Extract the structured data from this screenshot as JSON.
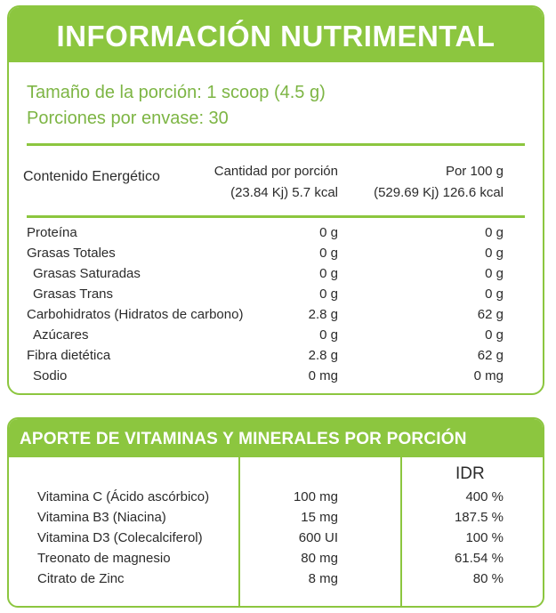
{
  "nutrition": {
    "title": "INFORMACIÓN  NUTRIMENTAL",
    "serving_size": "Tamaño de la porción: 1 scoop (4.5 g)",
    "servings_per_container": "Porciones por envase: 30",
    "energy_label": "Contenido Energético",
    "per_serving_header": "Cantidad por porción",
    "per_serving_energy": "(23.84 Kj) 5.7 kcal",
    "per_100g_header": "Por 100 g",
    "per_100g_energy": "(529.69 Kj) 126.6 kcal",
    "rows": [
      {
        "label": "Proteína",
        "per_serving": "0 g",
        "per_100g": "0 g"
      },
      {
        "label": "Grasas Totales",
        "per_serving": "0 g",
        "per_100g": "0 g"
      },
      {
        "label": "Grasas Saturadas",
        "per_serving": "0 g",
        "per_100g": "0 g"
      },
      {
        "label": "Grasas Trans",
        "per_serving": "0 g",
        "per_100g": "0 g"
      },
      {
        "label": "Carbohidratos (Hidratos de carbono)",
        "per_serving": "2.8 g",
        "per_100g": "62 g"
      },
      {
        "label": "Azúcares",
        "per_serving": "0 g",
        "per_100g": "0 g"
      },
      {
        "label": "Fibra dietética",
        "per_serving": "2.8 g",
        "per_100g": "62 g"
      },
      {
        "label": "Sodio",
        "per_serving": "0 mg",
        "per_100g": "0 mg"
      }
    ]
  },
  "vitamins": {
    "title": "APORTE DE VITAMINAS Y MINERALES POR PORCIÓN",
    "idr_header": "IDR",
    "rows": [
      {
        "label": "Vitamina C (Ácido ascórbico)",
        "amount": "100 mg",
        "idr": "400 %"
      },
      {
        "label": "Vitamina B3 (Niacina)",
        "amount": "15 mg",
        "idr": "187.5 %"
      },
      {
        "label": "Vitamina D3 (Colecalciferol)",
        "amount": "600 UI",
        "idr": "100 %"
      },
      {
        "label": "Treonato de magnesio",
        "amount": "80 mg",
        "idr": "61.54 %"
      },
      {
        "label": "Citrato de Zinc",
        "amount": "8 mg",
        "idr": "80 %"
      }
    ]
  },
  "colors": {
    "accent": "#8cc63f",
    "serving_text": "#7db544",
    "text": "#2b2b2b"
  }
}
